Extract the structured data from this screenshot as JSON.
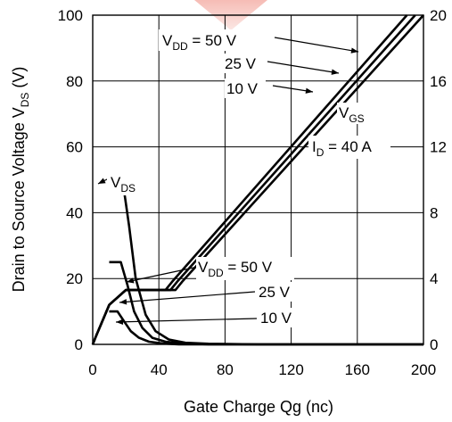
{
  "chart_data": {
    "type": "line",
    "xlabel": "Gate Charge  Qg  (nc)",
    "ylabel_left": "Drain to Source Voltage  V",
    "ylabel_left_sub": "DS",
    "ylabel_left_unit": "  (V)",
    "x": {
      "min": 0,
      "max": 200,
      "ticks": [
        "0",
        "40",
        "80",
        "120",
        "160",
        "200"
      ]
    },
    "y_left": {
      "min": 0,
      "max": 100,
      "ticks": [
        "0",
        "20",
        "40",
        "60",
        "80",
        "100"
      ]
    },
    "y_right": {
      "min": 0,
      "max": 20,
      "ticks": [
        "0",
        "4",
        "8",
        "12",
        "16",
        "20"
      ]
    },
    "grid": true,
    "accent_color": "#f2a6a0",
    "annotations": {
      "vdd_top": {
        "prefix": "V",
        "sub": "DD",
        "text": " = 50 V"
      },
      "v25_top": {
        "text": "25 V"
      },
      "v10_top": {
        "text": "10 V"
      },
      "vgs": {
        "prefix": "V",
        "sub": "GS",
        "text": ""
      },
      "id": {
        "prefix": "I",
        "sub": "D",
        "text": " = 40 A"
      },
      "vds": {
        "prefix": "V",
        "sub": "DS",
        "text": ""
      },
      "vdd_bottom": {
        "prefix": "V",
        "sub": "DD",
        "text": " = 50 V"
      },
      "v25_bottom": {
        "text": "25 V"
      },
      "v10_bottom": {
        "text": "10 V"
      }
    },
    "series": [
      {
        "axis": "right",
        "x": [
          0,
          2,
          10,
          20,
          38,
          44,
          48,
          190
        ],
        "y": [
          0,
          0.5,
          2.4,
          3.3,
          3.3,
          3.3,
          3.8,
          20
        ]
      },
      {
        "axis": "right",
        "x": [
          0,
          2,
          10,
          20,
          39,
          47,
          51,
          195
        ],
        "y": [
          0,
          0.5,
          2.4,
          3.3,
          3.3,
          3.3,
          3.8,
          20
        ]
      },
      {
        "axis": "right",
        "x": [
          0,
          2,
          10,
          20,
          40,
          50,
          54,
          200
        ],
        "y": [
          0,
          0.5,
          2.4,
          3.3,
          3.3,
          3.3,
          3.8,
          20
        ]
      },
      {
        "axis": "left",
        "x": [
          10,
          18,
          22,
          26,
          32,
          38,
          46,
          56,
          70,
          100,
          200
        ],
        "y": [
          50,
          50,
          36,
          20,
          9,
          4,
          1.5,
          0.5,
          0.2,
          0,
          0
        ]
      },
      {
        "axis": "left",
        "x": [
          10,
          17,
          21,
          25,
          30,
          36,
          44,
          55,
          70,
          100,
          200
        ],
        "y": [
          25,
          25,
          18,
          10,
          5,
          2,
          0.8,
          0.3,
          0,
          0,
          0
        ]
      },
      {
        "axis": "left",
        "x": [
          10,
          15,
          19,
          23,
          28,
          34,
          42,
          52,
          70,
          100,
          200
        ],
        "y": [
          10,
          10,
          7,
          4,
          2,
          0.8,
          0.3,
          0,
          0,
          0,
          0
        ]
      }
    ]
  }
}
